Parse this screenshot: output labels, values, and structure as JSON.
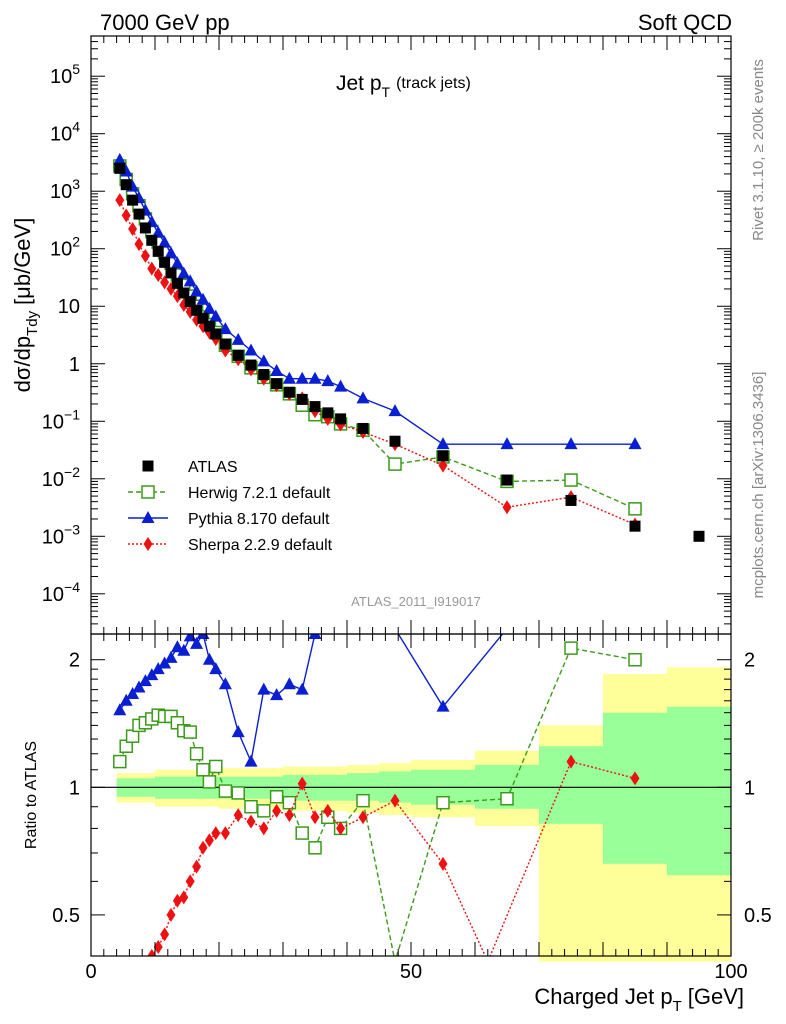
{
  "header": {
    "left": "7000 GeV pp",
    "right": "Soft QCD"
  },
  "side_labels": {
    "rivet": "Rivet 3.1.10, ≥ 200k events",
    "mcplots": "mcplots.cern.ch [arXiv:1306.3436]"
  },
  "chart_data": {
    "type": "line",
    "title_main": "Jet p",
    "title_sub": "T",
    "title_note": "(track jets)",
    "analysis_id": "ATLAS_2011_I919017",
    "ylabel_main": "dσ/dp",
    "ylabel_sub": "Tdy",
    "ylabel_unit": "[μb/GeV]",
    "ratio_ylabel": "Ratio to ATLAS",
    "xlabel_main": "Charged Jet p",
    "xlabel_sub": "T",
    "xlabel_unit": "[GeV]",
    "xlim": [
      0,
      100
    ],
    "ylim": [
      2e-05,
      500000
    ],
    "yscale": "log",
    "ratio_ylim": [
      0.4,
      2.3
    ],
    "ratio_yscale": "log",
    "x_ticks": [
      "0",
      "50",
      "100"
    ],
    "y_ticks": [
      {
        "base": "10",
        "exp": "5"
      },
      {
        "base": "10",
        "exp": "4"
      },
      {
        "base": "10",
        "exp": "3"
      },
      {
        "base": "10",
        "exp": "2"
      },
      {
        "base": "10",
        "exp": ""
      },
      {
        "base": "1",
        "exp": ""
      },
      {
        "base": "10",
        "exp": "−1"
      },
      {
        "base": "10",
        "exp": "−2"
      },
      {
        "base": "10",
        "exp": "−3"
      },
      {
        "base": "10",
        "exp": "−4"
      }
    ],
    "ratio_ticks": [
      "2",
      "1",
      "0.5"
    ],
    "legend_position": "lower-left",
    "series": [
      {
        "name": "ATLAS",
        "color": "#000000",
        "marker": "square-filled",
        "x": [
          4.5,
          5.5,
          6.5,
          7.5,
          8.5,
          9.5,
          10.5,
          11.5,
          12.5,
          13.5,
          14.5,
          15.5,
          16.5,
          17.5,
          18.5,
          19.5,
          21,
          23,
          25,
          27,
          29,
          31,
          33,
          35,
          37,
          39,
          42.5,
          47.5,
          55,
          65,
          75,
          85,
          95
        ],
        "y": [
          2500,
          1300,
          700,
          400,
          230,
          140,
          90,
          58,
          38,
          25,
          17,
          12,
          8.5,
          6.2,
          4.5,
          3.3,
          2.2,
          1.4,
          0.95,
          0.65,
          0.45,
          0.32,
          0.24,
          0.18,
          0.14,
          0.11,
          0.075,
          0.045,
          0.025,
          0.0095,
          0.0042,
          0.0015,
          0.001
        ]
      },
      {
        "name": "Herwig 7.2.1 default",
        "color": "#3a9a1a",
        "marker": "square-open",
        "x": [
          4.5,
          5.5,
          6.5,
          7.5,
          8.5,
          9.5,
          10.5,
          11.5,
          12.5,
          13.5,
          14.5,
          15.5,
          16.5,
          17.5,
          18.5,
          19.5,
          21,
          23,
          25,
          27,
          29,
          31,
          33,
          35,
          37,
          39,
          42.5,
          47.5,
          55,
          65,
          75,
          85
        ],
        "y": [
          2750,
          1600,
          900,
          560,
          330,
          200,
          130,
          85,
          56,
          35,
          23,
          15,
          10,
          6.5,
          4.8,
          3.5,
          2.1,
          1.35,
          0.85,
          0.58,
          0.43,
          0.3,
          0.19,
          0.13,
          0.12,
          0.09,
          0.07,
          0.018,
          0.024,
          0.009,
          0.0095,
          0.003
        ]
      },
      {
        "name": "Pythia 8.170 default",
        "color": "#0a1fd1",
        "marker": "triangle",
        "x": [
          4.5,
          5.5,
          6.5,
          7.5,
          8.5,
          9.5,
          10.5,
          11.5,
          12.5,
          13.5,
          14.5,
          15.5,
          16.5,
          17.5,
          18.5,
          19.5,
          21,
          23,
          25,
          27,
          29,
          31,
          33,
          35,
          37,
          39,
          42.5,
          47.5,
          55,
          65,
          75,
          85
        ],
        "y": [
          3500,
          2200,
          1200,
          760,
          460,
          290,
          190,
          128,
          83,
          55,
          37,
          27,
          18,
          13,
          9,
          6.6,
          4,
          2.6,
          1.7,
          1.1,
          0.75,
          0.55,
          0.55,
          0.55,
          0.5,
          0.4,
          0.25,
          0.15,
          0.04,
          0.04,
          0.04,
          0.04
        ]
      },
      {
        "name": "Sherpa 2.2.9 default",
        "color": "#ee1111",
        "marker": "diamond",
        "x": [
          4.5,
          5.5,
          6.5,
          7.5,
          8.5,
          9.5,
          10.5,
          11.5,
          12.5,
          13.5,
          14.5,
          15.5,
          16.5,
          17.5,
          18.5,
          19.5,
          21,
          23,
          25,
          27,
          29,
          31,
          33,
          35,
          37,
          39,
          42.5,
          47.5,
          55,
          65,
          75,
          85
        ],
        "y": [
          700,
          380,
          220,
          120,
          75,
          45,
          35,
          26,
          20,
          15,
          10.5,
          8,
          5.8,
          4.5,
          3.5,
          2.7,
          1.7,
          1.2,
          0.8,
          0.55,
          0.42,
          0.3,
          0.25,
          0.15,
          0.11,
          0.088,
          0.065,
          0.04,
          0.017,
          0.0032,
          0.0048,
          0.0016
        ]
      }
    ],
    "ratio_series": [
      {
        "name": "Herwig 7.2.1 default",
        "x": [
          4.5,
          5.5,
          6.5,
          7.5,
          8.5,
          9.5,
          10.5,
          11.5,
          12.5,
          13.5,
          14.5,
          15.5,
          16.5,
          17.5,
          18.5,
          19.5,
          21,
          23,
          25,
          27,
          29,
          31,
          33,
          35,
          37,
          39,
          42.5,
          47.5,
          55,
          65,
          75,
          85
        ],
        "y": [
          1.15,
          1.25,
          1.32,
          1.4,
          1.42,
          1.45,
          1.48,
          1.47,
          1.47,
          1.42,
          1.36,
          1.35,
          1.2,
          1.1,
          1.03,
          1.12,
          0.98,
          0.97,
          0.9,
          0.88,
          0.95,
          0.92,
          0.78,
          0.72,
          0.85,
          0.8,
          0.93,
          0.38,
          0.92,
          0.94,
          2.13,
          2.0
        ]
      },
      {
        "name": "Pythia 8.170 default",
        "x": [
          4.5,
          5.5,
          6.5,
          7.5,
          8.5,
          9.5,
          10.5,
          11.5,
          12.5,
          13.5,
          14.5,
          15.5,
          16.5,
          17.5,
          18.5,
          19.5,
          21,
          23,
          25,
          27,
          29,
          31,
          33,
          35,
          37,
          39,
          42.5,
          47.5,
          55,
          65
        ],
        "y": [
          1.52,
          1.6,
          1.66,
          1.72,
          1.78,
          1.84,
          1.9,
          1.96,
          2.02,
          2.14,
          2.1,
          2.27,
          2.18,
          2.3,
          2.0,
          1.9,
          1.75,
          1.35,
          1.15,
          1.7,
          1.65,
          1.75,
          1.7,
          2.3,
          2.6,
          2.6,
          2.6,
          2.6,
          1.55,
          2.6
        ]
      },
      {
        "name": "Sherpa 2.2.9 default",
        "x": [
          9.5,
          10.5,
          11.5,
          12.5,
          13.5,
          14.5,
          15.5,
          16.5,
          17.5,
          18.5,
          19.5,
          21,
          23,
          25,
          27,
          29,
          31,
          33,
          35,
          37,
          39,
          42.5,
          47.5,
          55,
          62,
          75,
          85
        ],
        "y": [
          0.4,
          0.42,
          0.45,
          0.5,
          0.54,
          0.55,
          0.6,
          0.65,
          0.72,
          0.75,
          0.78,
          0.78,
          0.86,
          0.83,
          0.8,
          0.88,
          0.86,
          1.02,
          0.85,
          0.88,
          0.8,
          0.85,
          0.93,
          0.66,
          0.35,
          1.15,
          1.05
        ]
      }
    ],
    "ratio_bands": [
      {
        "x0": 4,
        "x1": 5,
        "inner": [
          0.95,
          1.05
        ],
        "outer": [
          0.92,
          1.08
        ]
      },
      {
        "x0": 5,
        "x1": 10,
        "inner": [
          0.95,
          1.05
        ],
        "outer": [
          0.92,
          1.08
        ]
      },
      {
        "x0": 10,
        "x1": 20,
        "inner": [
          0.94,
          1.06
        ],
        "outer": [
          0.9,
          1.1
        ]
      },
      {
        "x0": 20,
        "x1": 30,
        "inner": [
          0.94,
          1.06
        ],
        "outer": [
          0.89,
          1.11
        ]
      },
      {
        "x0": 30,
        "x1": 40,
        "inner": [
          0.93,
          1.07
        ],
        "outer": [
          0.88,
          1.12
        ]
      },
      {
        "x0": 40,
        "x1": 45,
        "inner": [
          0.93,
          1.08
        ],
        "outer": [
          0.87,
          1.13
        ]
      },
      {
        "x0": 45,
        "x1": 50,
        "inner": [
          0.92,
          1.09
        ],
        "outer": [
          0.86,
          1.14
        ]
      },
      {
        "x0": 50,
        "x1": 60,
        "inner": [
          0.91,
          1.1
        ],
        "outer": [
          0.85,
          1.16
        ]
      },
      {
        "x0": 60,
        "x1": 70,
        "inner": [
          0.89,
          1.13
        ],
        "outer": [
          0.81,
          1.22
        ]
      },
      {
        "x0": 70,
        "x1": 80,
        "inner": [
          0.82,
          1.25
        ],
        "outer": [
          0.38,
          1.4
        ]
      },
      {
        "x0": 80,
        "x1": 90,
        "inner": [
          0.66,
          1.5
        ],
        "outer": [
          0.38,
          1.85
        ]
      },
      {
        "x0": 90,
        "x1": 100,
        "inner": [
          0.62,
          1.55
        ],
        "outer": [
          0.38,
          1.92
        ]
      }
    ]
  }
}
